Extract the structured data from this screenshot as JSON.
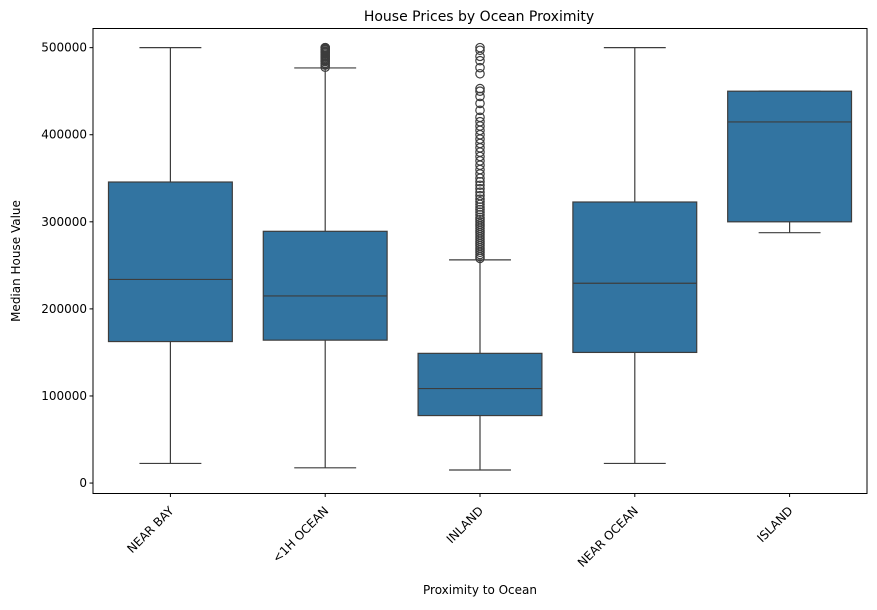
{
  "chart_data": {
    "type": "box",
    "title": "House Prices by Ocean Proximity",
    "xlabel": "Proximity to Ocean",
    "ylabel": "Median House Value",
    "ylim": [
      -12000,
      522000
    ],
    "yticks": [
      0,
      100000,
      200000,
      300000,
      400000,
      500000
    ],
    "ytick_labels": [
      "0",
      "100000",
      "200000",
      "300000",
      "400000",
      "500000"
    ],
    "grid": false,
    "legend": "none",
    "box_color": "#3274a1",
    "line_color": "#3d3d3d",
    "categories": [
      "NEAR BAY",
      "<1H OCEAN",
      "INLAND",
      "NEAR OCEAN",
      "ISLAND"
    ],
    "boxes": [
      {
        "category": "NEAR BAY",
        "whislo": 22500,
        "q1": 162500,
        "med": 233800,
        "q3": 345700,
        "whishi": 500001,
        "fliers": []
      },
      {
        "category": "<1H OCEAN",
        "whislo": 17500,
        "q1": 164100,
        "med": 214850,
        "q3": 289100,
        "whishi": 476700,
        "fliers": [
          477500,
          480000,
          482000,
          484000,
          485000,
          486000,
          487500,
          489000,
          490000,
          491000,
          492500,
          494000,
          495000,
          496000,
          497500,
          498000,
          499000,
          500000,
          500001
        ]
      },
      {
        "category": "INLAND",
        "whislo": 14999,
        "q1": 77500,
        "med": 108500,
        "q3": 148950,
        "whishi": 256300,
        "fliers": [
          258000,
          260000,
          262500,
          265000,
          267500,
          270000,
          272500,
          275000,
          277500,
          280000,
          282500,
          285000,
          287500,
          290000,
          292500,
          295000,
          297500,
          300000,
          302500,
          305000,
          308000,
          311000,
          314000,
          317000,
          320000,
          323000,
          326000,
          330000,
          334000,
          338000,
          342000,
          346000,
          350000,
          355000,
          360000,
          365000,
          370000,
          375000,
          380000,
          385000,
          390000,
          395000,
          400000,
          405000,
          410000,
          415000,
          420000,
          428000,
          436000,
          444000,
          450000,
          453000,
          470000,
          477000,
          485000,
          490000,
          497000,
          500001
        ]
      },
      {
        "category": "NEAR OCEAN",
        "whislo": 22500,
        "q1": 150000,
        "med": 229450,
        "q3": 322750,
        "whishi": 500001,
        "fliers": []
      },
      {
        "category": "ISLAND",
        "whislo": 287500,
        "q1": 300000,
        "med": 414700,
        "q3": 450000,
        "whishi": 450000,
        "fliers": []
      }
    ]
  }
}
